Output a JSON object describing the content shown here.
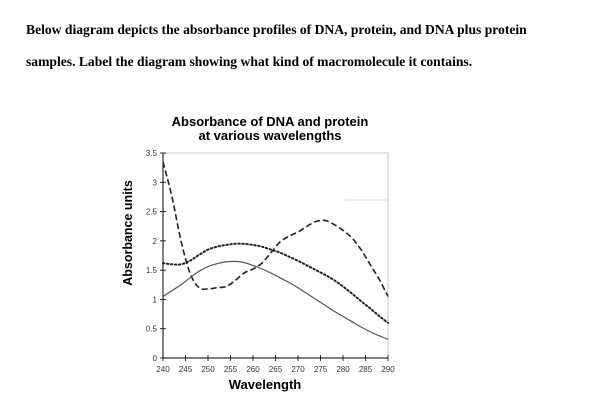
{
  "question": {
    "line1": "Below diagram depicts the absorbance profiles of DNA, protein, and DNA plus protein",
    "line2": "samples. Label the diagram showing what kind of macromolecule it contains."
  },
  "chart_data": {
    "type": "line",
    "title_line1": "Absorbance of DNA and protein",
    "title_line2": "at various wavelengths",
    "xlabel": "Wavelength",
    "ylabel": "Absorbance units",
    "x_ticks": [
      "240",
      "245",
      "250",
      "255",
      "260",
      "265",
      "270",
      "275",
      "280",
      "285",
      "290"
    ],
    "y_ticks": [
      "0",
      "0.5",
      "1",
      "1.5",
      "2",
      "2.5",
      "3",
      "3.5"
    ],
    "xlim": [
      240,
      290
    ],
    "ylim": [
      0,
      3.5
    ],
    "grid": false,
    "legend": "none",
    "series": [
      {
        "style": "dashed",
        "color": "#222222",
        "x": [
          240,
          242,
          244,
          246,
          248,
          250,
          252,
          254,
          256,
          258,
          260,
          262,
          264,
          266,
          268,
          270,
          272,
          274,
          276,
          278,
          280,
          282,
          284,
          286,
          288,
          290
        ],
        "y": [
          3.35,
          2.75,
          2.0,
          1.45,
          1.2,
          1.18,
          1.2,
          1.22,
          1.32,
          1.45,
          1.52,
          1.62,
          1.8,
          1.98,
          2.08,
          2.15,
          2.25,
          2.33,
          2.35,
          2.28,
          2.18,
          2.05,
          1.85,
          1.6,
          1.35,
          1.05
        ]
      },
      {
        "style": "dotted",
        "color": "#222222",
        "x": [
          240,
          242,
          244,
          246,
          248,
          250,
          252,
          254,
          256,
          258,
          260,
          262,
          264,
          266,
          268,
          270,
          272,
          274,
          276,
          278,
          280,
          282,
          284,
          286,
          288,
          290
        ],
        "y": [
          1.62,
          1.6,
          1.6,
          1.66,
          1.76,
          1.85,
          1.9,
          1.93,
          1.95,
          1.95,
          1.93,
          1.9,
          1.85,
          1.8,
          1.73,
          1.66,
          1.58,
          1.5,
          1.42,
          1.33,
          1.22,
          1.1,
          0.97,
          0.85,
          0.72,
          0.6
        ]
      },
      {
        "style": "solid",
        "color": "#555555",
        "x": [
          240,
          242,
          244,
          246,
          248,
          250,
          252,
          254,
          256,
          258,
          260,
          262,
          264,
          266,
          268,
          270,
          272,
          274,
          276,
          278,
          280,
          282,
          284,
          286,
          288,
          290
        ],
        "y": [
          1.05,
          1.15,
          1.25,
          1.37,
          1.48,
          1.56,
          1.61,
          1.64,
          1.65,
          1.63,
          1.58,
          1.52,
          1.45,
          1.37,
          1.29,
          1.2,
          1.1,
          1.0,
          0.9,
          0.8,
          0.71,
          0.62,
          0.53,
          0.45,
          0.38,
          0.32
        ]
      }
    ]
  }
}
